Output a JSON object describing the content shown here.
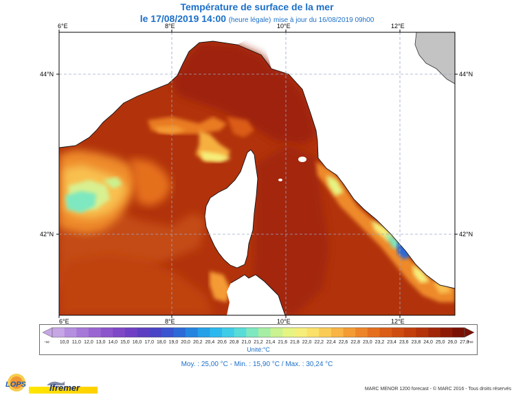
{
  "header": {
    "title": "Température de surface de la mer",
    "date": "le 17/08/2019 14:00",
    "legal_time": "(heure légale)",
    "update": "mise à jour du 16/08/2019 09h00"
  },
  "axes": {
    "lon_top": [
      "6°E",
      "8°E",
      "10°E",
      "12°E"
    ],
    "lon_bottom": [
      "6°E",
      "8°E",
      "10°E",
      "12°E"
    ],
    "lat_left": [
      "44°N",
      "42°N"
    ],
    "lat_right": [
      "44°N",
      "42°N"
    ]
  },
  "colorbar": {
    "labels": [
      "10,0",
      "11,0",
      "12,0",
      "13,0",
      "14,0",
      "15,0",
      "16,0",
      "17,0",
      "18,0",
      "19,0",
      "20,0",
      "20,2",
      "20,4",
      "20,6",
      "20,8",
      "21,0",
      "21,2",
      "21,4",
      "21,6",
      "21,8",
      "22,0",
      "22,2",
      "22,4",
      "22,6",
      "22,8",
      "23,0",
      "23,2",
      "23,4",
      "23,6",
      "23,8",
      "24,0",
      "25,0",
      "26,0",
      "27,0"
    ],
    "colors": [
      "#c7a6e6",
      "#b58ee0",
      "#a678d8",
      "#9a66d2",
      "#8c55cc",
      "#7f48c6",
      "#7040c4",
      "#5d3ec2",
      "#4a44c6",
      "#3a55d0",
      "#2c6ad8",
      "#2584e0",
      "#23a0e8",
      "#2bb8ee",
      "#3fcce8",
      "#58dcd8",
      "#7ee8c0",
      "#a6eea4",
      "#caf290",
      "#e6f482",
      "#f6ee7a",
      "#fbe06a",
      "#fbcc55",
      "#f8b444",
      "#f49b34",
      "#ee8428",
      "#e56f1e",
      "#da5c16",
      "#cf4c10",
      "#c23e0c",
      "#b3320a",
      "#a22608",
      "#8e1a06",
      "#7a1004"
    ],
    "low_arrow": "-∞",
    "high_arrow": "+∞",
    "unit": "Unité:°C"
  },
  "stats": {
    "text": "Moy. : 25,00 °C   -   Min. : 15,90 °C / Max. : 30,24 °C"
  },
  "footer": {
    "credit": "MARC MENOR 1200 forecast - © MARC 2016 - Tous droits réservés"
  },
  "logos": {
    "lops": "LOPS",
    "ifremer": "Ifremer"
  }
}
